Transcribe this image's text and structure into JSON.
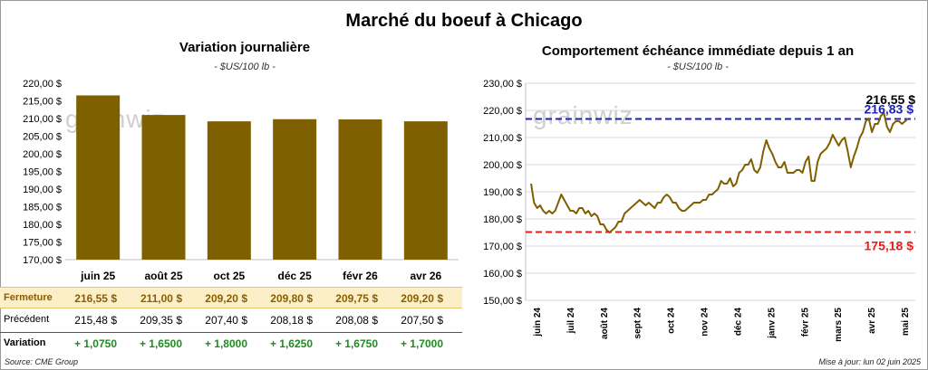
{
  "main_title": "Marché du boeuf à Chicago",
  "left": {
    "title": "Variation journalière",
    "unit": "- $US/100 lb -",
    "watermark": "grainwiz"
  },
  "right": {
    "title": "Comportement échéance immédiate depuis 1 an",
    "unit": "- $US/100 lb -",
    "watermark": "grainwiz",
    "line_high_label": "216,83 $",
    "line_low_label": "175,18 $",
    "last_label": "216,55 $"
  },
  "table": {
    "close_label": "Fermeture",
    "prev_label": "Précédent",
    "var_label": "Variation",
    "close": [
      "216,55 $",
      "211,00 $",
      "209,20 $",
      "209,80 $",
      "209,75 $",
      "209,20 $"
    ],
    "prev": [
      "215,48 $",
      "209,35 $",
      "207,40 $",
      "208,18 $",
      "208,08 $",
      "207,50 $"
    ],
    "var": [
      "+ 1,0750",
      "+ 1,6500",
      "+ 1,8000",
      "+ 1,6250",
      "+ 1,6750",
      "+ 1,7000"
    ]
  },
  "footer": {
    "source": "Source: CME Group",
    "update": "Mise à jour: lun 02 juin 2025"
  },
  "colors": {
    "bar": "#7f6000",
    "line": "#7f6000",
    "high_line": "#1f1fb0",
    "low_line": "#e81c1c",
    "grid": "#d9d9d9"
  },
  "chart_data": [
    {
      "type": "bar",
      "title": "Variation journalière",
      "unit": "- $US/100 lb -",
      "categories": [
        "juin 25",
        "août 25",
        "oct 25",
        "déc 25",
        "févr 26",
        "avr 26"
      ],
      "values": [
        216.55,
        211.0,
        209.2,
        209.8,
        209.75,
        209.2
      ],
      "ylim": [
        170,
        220
      ],
      "yticks": [
        "170,00 $",
        "175,00 $",
        "180,00 $",
        "185,00 $",
        "190,00 $",
        "195,00 $",
        "200,00 $",
        "205,00 $",
        "210,00 $",
        "215,00 $",
        "220,00 $"
      ],
      "grid": false
    },
    {
      "type": "line",
      "title": "Comportement échéance immédiate depuis 1 an",
      "unit": "- $US/100 lb -",
      "x_ticks": [
        "juin 24",
        "juil 24",
        "août 24",
        "sept 24",
        "oct 24",
        "nov 24",
        "déc 24",
        "janv 25",
        "févr 25",
        "mars 25",
        "avr 25",
        "mai 25"
      ],
      "ylim": [
        150,
        230
      ],
      "yticks": [
        "150,00 $",
        "160,00 $",
        "170,00 $",
        "180,00 $",
        "190,00 $",
        "200,00 $",
        "210,00 $",
        "220,00 $",
        "230,00 $"
      ],
      "grid": true,
      "hlines": [
        {
          "value": 216.83,
          "label": "216,83 $",
          "color": "#1f1fb0",
          "style": "dashed"
        },
        {
          "value": 175.18,
          "label": "175,18 $",
          "color": "#e81c1c",
          "style": "dashed"
        }
      ],
      "last_value": 216.55,
      "series": [
        {
          "values": [
            193,
            186,
            184,
            185,
            183,
            182,
            183,
            182,
            183,
            186,
            189,
            187,
            185,
            183,
            183,
            182,
            184,
            184,
            182,
            183,
            181,
            182,
            181,
            178,
            178,
            176,
            175,
            176,
            177,
            179,
            179,
            182,
            183,
            184,
            185,
            186,
            187,
            186,
            185,
            186,
            185,
            184,
            186,
            186,
            188,
            189,
            188,
            186,
            186,
            184,
            183,
            183,
            184,
            185,
            186,
            186,
            186,
            187,
            187,
            189,
            189,
            190,
            191,
            194,
            193,
            193,
            195,
            192,
            193,
            197,
            198,
            200,
            200,
            202,
            198,
            197,
            199,
            205,
            209,
            206,
            204,
            201,
            199,
            199,
            201,
            197,
            197,
            197,
            198,
            198,
            197,
            201,
            203,
            194,
            194,
            201,
            204,
            205,
            206,
            208,
            211,
            209,
            207,
            209,
            210,
            205,
            199,
            203,
            206,
            210,
            212,
            216,
            217,
            212,
            215,
            215,
            218,
            219,
            214,
            212,
            215,
            216,
            216,
            215,
            216,
            217
          ]
        }
      ]
    }
  ]
}
